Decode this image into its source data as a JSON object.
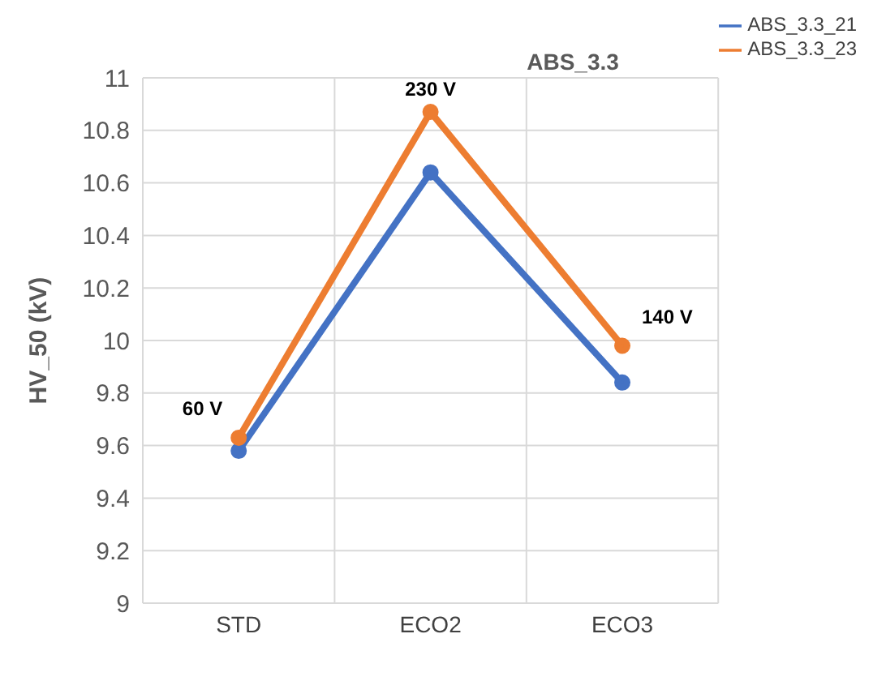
{
  "chart_data": {
    "type": "line",
    "title": "ABS_3.3",
    "ylabel": "HV_50 (kV)",
    "categories": [
      "STD",
      "ECO2",
      "ECO3"
    ],
    "series": [
      {
        "name": "ABS_3.3_21",
        "color": "#4472c4",
        "values": [
          9.58,
          10.64,
          9.84
        ]
      },
      {
        "name": "ABS_3.3_23",
        "color": "#ed7d31",
        "values": [
          9.63,
          10.87,
          9.98
        ]
      }
    ],
    "ylim": [
      9,
      11
    ],
    "yticks": [
      9,
      9.2,
      9.4,
      9.6,
      9.8,
      10,
      10.2,
      10.4,
      10.6,
      10.8,
      11
    ],
    "grid": true,
    "legend": "top right",
    "marker": "circle",
    "line_style": "solid",
    "annotations": [
      {
        "text": "60 V",
        "x": "STD",
        "y": 9.63
      },
      {
        "text": "230 V",
        "x": "ECO2",
        "y": 10.87
      },
      {
        "text": "140 V",
        "x": "ECO3",
        "y": 9.98
      }
    ]
  }
}
